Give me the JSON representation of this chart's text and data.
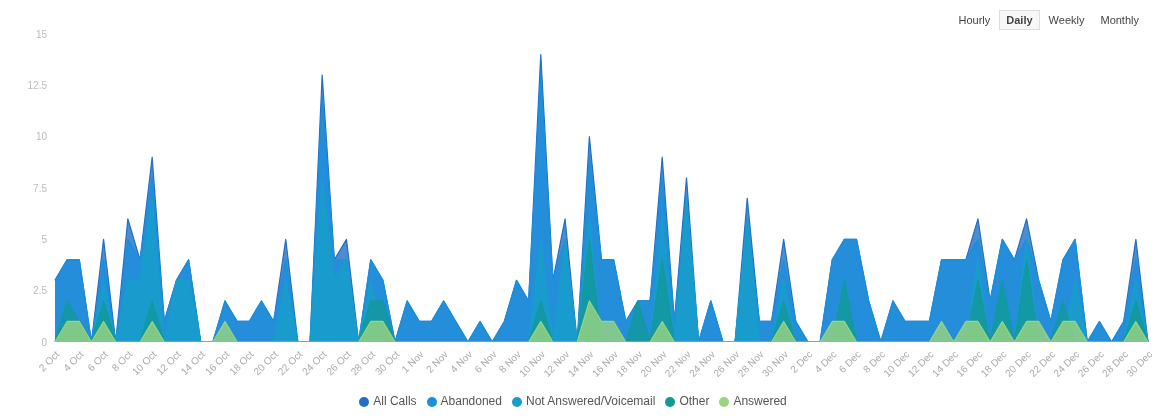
{
  "chart_data": {
    "type": "area",
    "categories": [
      "2 Oct",
      null,
      "4 Oct",
      null,
      "6 Oct",
      null,
      "8 Oct",
      null,
      "10 Oct",
      null,
      "12 Oct",
      null,
      "14 Oct",
      null,
      "16 Oct",
      null,
      "18 Oct",
      null,
      "20 Oct",
      null,
      "22 Oct",
      null,
      "24 Oct",
      null,
      "26 Oct",
      null,
      "28 Oct",
      null,
      "30 Oct",
      null,
      "1 Nov",
      null,
      "2 Nov",
      null,
      "4 Nov",
      null,
      "6 Nov",
      null,
      "8 Nov",
      null,
      "10 Nov",
      null,
      "12 Nov",
      null,
      "14 Nov",
      null,
      "16 Nov",
      null,
      "18 Nov",
      null,
      "20 Nov",
      null,
      "22 Nov",
      null,
      "24 Nov",
      null,
      "26 Nov",
      null,
      "28 Nov",
      null,
      "30 Nov",
      null,
      "2 Dec",
      null,
      "4 Dec",
      null,
      "6 Dec",
      null,
      "8 Dec",
      null,
      "10 Dec",
      null,
      "12 Dec",
      null,
      "14 Dec",
      null,
      "16 Dec",
      null,
      "18 Dec",
      null,
      "20 Dec",
      null,
      "22 Dec",
      null,
      "24 Dec",
      null,
      "26 Dec",
      null,
      "28 Dec",
      null,
      "30 Dec"
    ],
    "series": [
      {
        "name": "All Calls",
        "color": "#1f6fc4",
        "values": [
          3,
          4,
          4,
          0,
          5,
          0,
          6,
          4,
          9,
          1,
          3,
          4,
          0,
          0,
          2,
          1,
          1,
          2,
          1,
          5,
          0,
          0,
          13,
          4,
          5,
          0,
          4,
          3,
          0,
          2,
          1,
          1,
          2,
          1,
          0,
          1,
          0,
          1,
          3,
          2,
          14,
          3,
          6,
          0,
          10,
          4,
          4,
          1,
          2,
          2,
          9,
          1,
          8,
          0,
          2,
          0,
          0,
          7,
          1,
          1,
          5,
          1,
          0,
          0,
          4,
          5,
          5,
          2,
          0,
          2,
          1,
          1,
          1,
          4,
          4,
          4,
          6,
          2,
          5,
          4,
          6,
          3,
          1,
          4,
          5,
          0,
          1,
          0,
          1,
          5,
          0
        ]
      },
      {
        "name": "Abandoned",
        "color": "#1a8fdc",
        "values": [
          3,
          4,
          4,
          0,
          4,
          0,
          5,
          4,
          8,
          1,
          3,
          4,
          0,
          0,
          2,
          1,
          1,
          2,
          1,
          4,
          0,
          0,
          12,
          4,
          4,
          0,
          4,
          3,
          0,
          2,
          1,
          1,
          2,
          1,
          0,
          1,
          0,
          1,
          3,
          2,
          13,
          3,
          5,
          0,
          9,
          4,
          4,
          1,
          2,
          2,
          8,
          1,
          7,
          0,
          2,
          0,
          0,
          6,
          1,
          1,
          4,
          1,
          0,
          0,
          4,
          5,
          5,
          2,
          0,
          2,
          1,
          1,
          1,
          4,
          4,
          4,
          5,
          2,
          5,
          4,
          5,
          3,
          1,
          4,
          5,
          0,
          1,
          0,
          1,
          4,
          0
        ]
      },
      {
        "name": "Not Answered/Voicemail",
        "color": "#169fc9",
        "values": [
          0,
          0,
          0,
          0,
          3,
          0,
          3,
          3,
          7,
          0,
          3,
          3,
          0,
          0,
          0,
          0,
          0,
          0,
          0,
          3,
          0,
          0,
          8,
          3,
          4,
          0,
          3,
          0,
          0,
          0,
          0,
          0,
          0,
          0,
          0,
          0,
          0,
          0,
          0,
          0,
          5,
          0,
          5,
          0,
          6,
          0,
          0,
          0,
          0,
          0,
          6,
          0,
          7,
          0,
          0,
          0,
          0,
          6,
          0,
          0,
          3,
          0,
          0,
          0,
          0,
          3,
          0,
          0,
          0,
          0,
          0,
          0,
          0,
          0,
          0,
          0,
          4,
          0,
          3,
          0,
          5,
          0,
          0,
          0,
          3,
          0,
          0,
          0,
          0,
          3,
          0
        ]
      },
      {
        "name": "Other",
        "color": "#12999c",
        "values": [
          0,
          2,
          1,
          0,
          2,
          0,
          0,
          0,
          2,
          0,
          0,
          0,
          0,
          0,
          0,
          0,
          0,
          0,
          0,
          0,
          0,
          0,
          0,
          0,
          0,
          0,
          2,
          2,
          0,
          0,
          0,
          0,
          0,
          0,
          0,
          0,
          0,
          0,
          0,
          0,
          2,
          0,
          0,
          0,
          5,
          0,
          0,
          0,
          2,
          0,
          4,
          0,
          0,
          0,
          0,
          0,
          0,
          0,
          0,
          0,
          2,
          0,
          0,
          0,
          0,
          3,
          0,
          0,
          0,
          0,
          0,
          0,
          0,
          0,
          0,
          0,
          3,
          0,
          3,
          0,
          4,
          0,
          0,
          2,
          0,
          0,
          0,
          0,
          0,
          2,
          0
        ]
      },
      {
        "name": "Answered",
        "color": "#9ad47f",
        "values": [
          0,
          1,
          1,
          0,
          1,
          0,
          0,
          0,
          1,
          0,
          0,
          0,
          0,
          0,
          1,
          0,
          0,
          0,
          0,
          0,
          0,
          0,
          0,
          0,
          0,
          0,
          1,
          1,
          0,
          0,
          0,
          0,
          0,
          0,
          0,
          0,
          0,
          0,
          0,
          0,
          1,
          0,
          0,
          0,
          2,
          1,
          1,
          0,
          0,
          0,
          1,
          0,
          0,
          0,
          0,
          0,
          0,
          0,
          0,
          0,
          1,
          0,
          0,
          0,
          1,
          1,
          0,
          0,
          0,
          0,
          0,
          0,
          0,
          1,
          0,
          1,
          1,
          0,
          1,
          0,
          1,
          1,
          0,
          1,
          1,
          0,
          0,
          0,
          0,
          1,
          0
        ]
      }
    ],
    "ylim": [
      0,
      15
    ],
    "yticks": [
      0,
      2.5,
      5,
      7.5,
      10,
      12.5,
      15
    ],
    "grid": false,
    "legend": "bottom",
    "marker": "none",
    "annotations": [
      "Hourly",
      "Daily",
      "Weekly",
      "Monthly"
    ]
  }
}
